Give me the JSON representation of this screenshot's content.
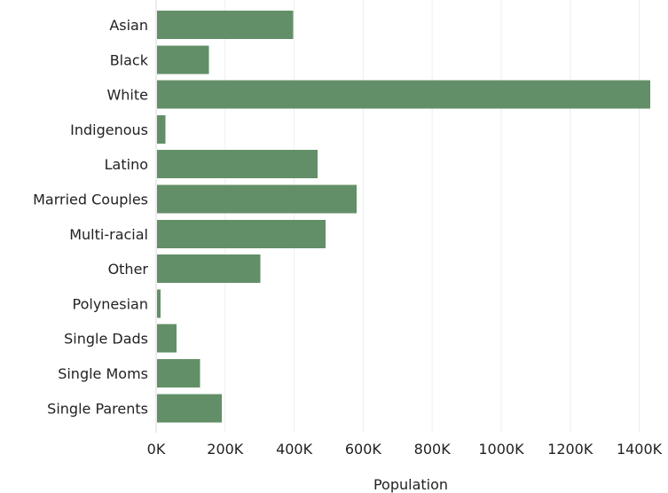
{
  "chart_data": {
    "type": "bar",
    "orientation": "horizontal",
    "categories": [
      "Asian",
      "Black",
      "White",
      "Indigenous",
      "Latino",
      "Married Couples",
      "Multi-racial",
      "Other",
      "Polynesian",
      "Single Dads",
      "Single Moms",
      "Single Parents"
    ],
    "values": [
      395000,
      150000,
      1430000,
      25000,
      465000,
      578000,
      488000,
      300000,
      10000,
      57000,
      125000,
      188000
    ],
    "xlabel": "Population",
    "ylabel": "",
    "xlim": [
      0,
      1450000
    ],
    "x_ticks": [
      0,
      200000,
      400000,
      600000,
      800000,
      1000000,
      1200000,
      1400000
    ],
    "x_tick_labels": [
      "0K",
      "200K",
      "400K",
      "600K",
      "800K",
      "1000K",
      "1200K",
      "1400K"
    ],
    "grid": true,
    "bar_color": "#628f67"
  }
}
